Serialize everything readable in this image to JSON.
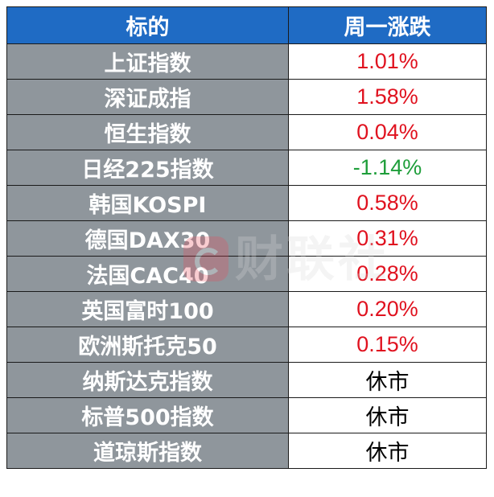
{
  "table": {
    "headers": [
      "标的",
      "周一涨跌"
    ],
    "rows": [
      {
        "name": "上证指数",
        "change": "1.01%",
        "trend": "up"
      },
      {
        "name": "深证成指",
        "change": "1.58%",
        "trend": "up"
      },
      {
        "name": "恒生指数",
        "change": "0.04%",
        "trend": "up"
      },
      {
        "name": "日经225指数",
        "change": "-1.14%",
        "trend": "down"
      },
      {
        "name": "韩国KOSPI",
        "change": "0.58%",
        "trend": "up"
      },
      {
        "name": "德国DAX30",
        "change": "0.31%",
        "trend": "up"
      },
      {
        "name": "法国CAC40",
        "change": "0.28%",
        "trend": "up"
      },
      {
        "name": "英国富时100",
        "change": "0.20%",
        "trend": "up"
      },
      {
        "name": "欧洲斯托克50",
        "change": "0.15%",
        "trend": "up"
      },
      {
        "name": "纳斯达克指数",
        "change": "休市",
        "trend": "closed"
      },
      {
        "name": "标普500指数",
        "change": "休市",
        "trend": "closed"
      },
      {
        "name": "道琼斯指数",
        "change": "休市",
        "trend": "closed"
      }
    ]
  },
  "watermark": {
    "text": "财联社",
    "icon": "cailianshe-logo-icon"
  },
  "colors": {
    "header_bg": "#1f6bc4",
    "name_bg": "#8f969c",
    "up": "#e0121f",
    "down": "#1e9e3a",
    "closed": "#000000"
  }
}
